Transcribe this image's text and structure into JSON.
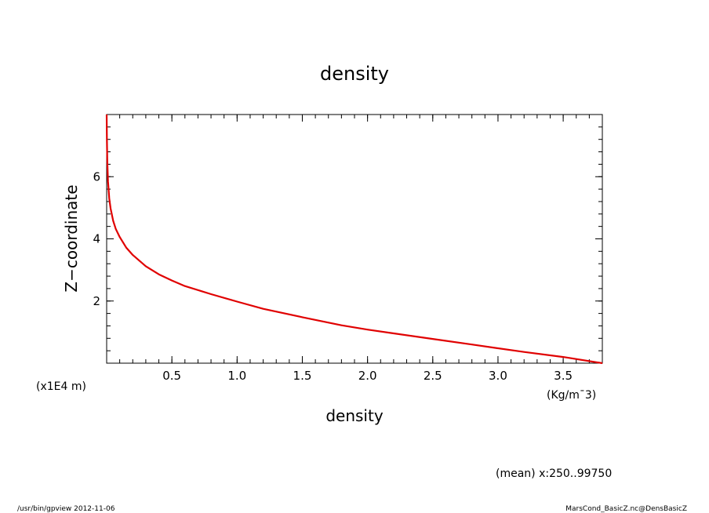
{
  "chart_data": {
    "type": "line",
    "title": "density",
    "xlabel": "density",
    "ylabel": "Z−coordinate",
    "x_unit": "(Kg/m¯3)",
    "y_unit": "(x1E4 m)",
    "xlim": [
      0,
      3.8
    ],
    "ylim": [
      0,
      8
    ],
    "x_ticks": [
      0.5,
      1.0,
      1.5,
      2.0,
      2.5,
      3.0,
      3.5
    ],
    "x_tick_labels": [
      "0.5",
      "1.0",
      "1.5",
      "2.0",
      "2.5",
      "3.0",
      "3.5"
    ],
    "y_ticks": [
      2,
      4,
      6
    ],
    "y_tick_labels": [
      "2",
      "4",
      "6"
    ],
    "grid": false,
    "line_color": "#e00000",
    "series": [
      {
        "x": [
          3.8,
          3.5,
          3.2,
          3.0,
          2.8,
          2.5,
          2.2,
          2.0,
          1.8,
          1.5,
          1.2,
          1.0,
          0.8,
          0.6,
          0.5,
          0.4,
          0.3,
          0.2,
          0.15,
          0.1,
          0.07,
          0.05,
          0.03,
          0.02,
          0.01,
          0.005,
          0.002,
          0.0
        ],
        "y": [
          0.0,
          0.2,
          0.36,
          0.48,
          0.6,
          0.78,
          0.96,
          1.08,
          1.22,
          1.48,
          1.75,
          1.98,
          2.22,
          2.48,
          2.66,
          2.86,
          3.12,
          3.48,
          3.72,
          4.06,
          4.32,
          4.58,
          4.98,
          5.3,
          5.85,
          6.5,
          7.2,
          8.0
        ]
      }
    ]
  },
  "info": {
    "mean_label": "(mean) x:250..99750",
    "footer_left": "/usr/bin/gpview   2012-11-06",
    "footer_right": "MarsCond_BasicZ.nc@DensBasicZ"
  }
}
